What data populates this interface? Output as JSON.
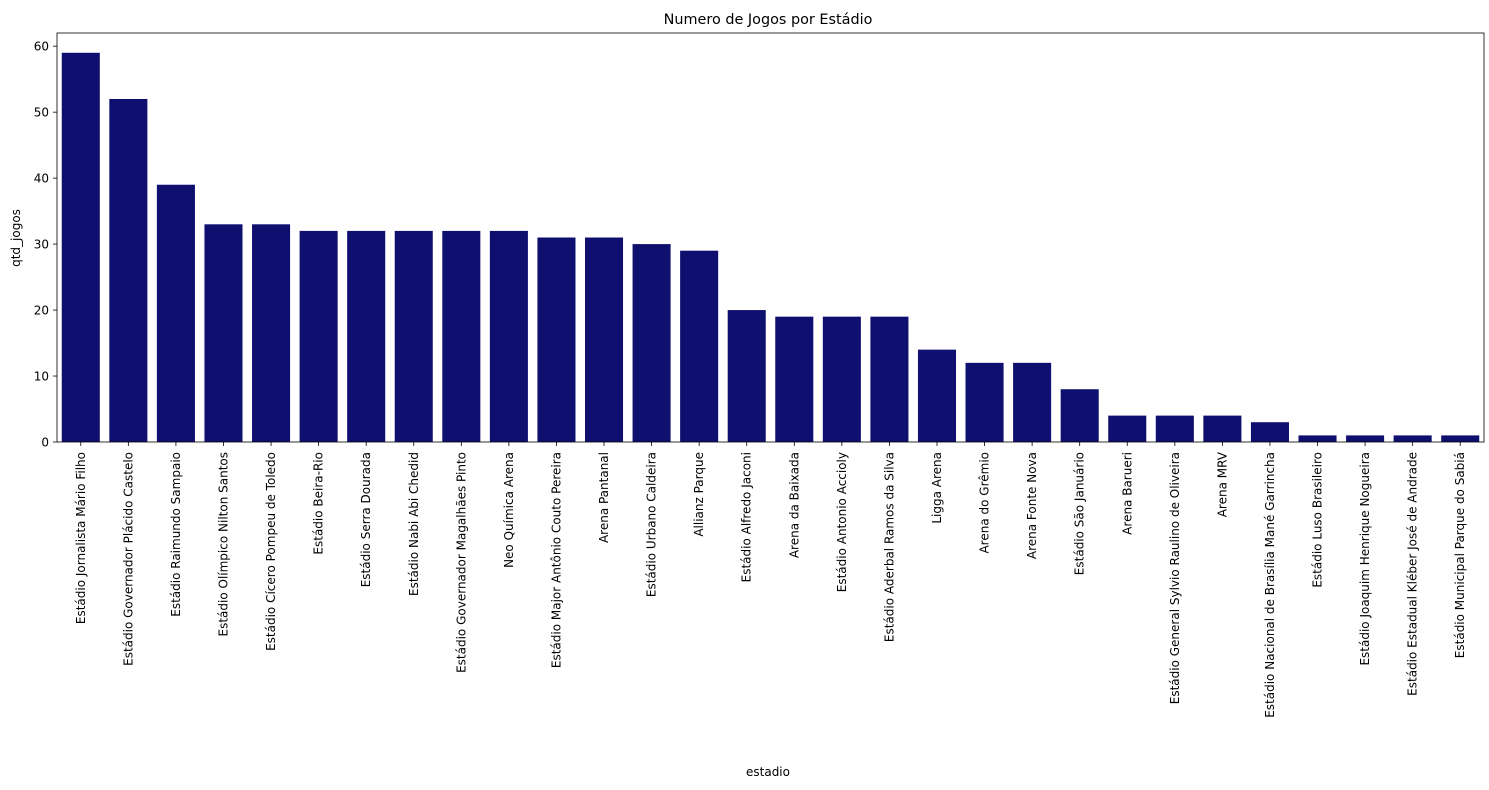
{
  "chart_data": {
    "type": "bar",
    "title": "Numero de Jogos por Estádio",
    "xlabel": "estadio",
    "ylabel": "qtd_jogos",
    "ylim": [
      0,
      62
    ],
    "yticks": [
      0,
      10,
      20,
      30,
      40,
      50,
      60
    ],
    "grid": false,
    "bar_color": "#0f0f70",
    "categories": [
      "Estádio Jornalista Mário Filho",
      "Estádio Governador Plácido Castelo",
      "Estádio Raimundo Sampaio",
      "Estádio Olímpico Nilton Santos",
      "Estádio Cícero Pompeu de Toledo",
      "Estádio Beira-Rio",
      "Estádio Serra Dourada",
      "Estádio Nabi Abi Chedid",
      "Estádio Governador Magalhães Pinto",
      "Neo Química Arena",
      "Estádio Major Antônio Couto Pereira",
      "Arena Pantanal",
      "Estádio Urbano Caldeira",
      "Allianz Parque",
      "Estádio Alfredo Jaconi",
      "Arena da Baixada",
      "Estádio Antonio Accioly",
      "Estádio Aderbal Ramos da Silva",
      "Ligga Arena",
      "Arena do Grêmio",
      "Arena Fonte Nova",
      "Estádio São Januário",
      "Arena Barueri",
      "Estádio General Sylvio Raulino de Oliveira",
      "Arena MRV",
      "Estádio Nacional de Brasília Mané Garrincha",
      "Estádio Luso Brasileiro",
      "Estádio Joaquim Henrique Nogueira",
      "Estádio Estadual Kléber José de Andrade",
      "Estádio Municipal Parque do Sabiá"
    ],
    "values": [
      59,
      52,
      39,
      33,
      33,
      32,
      32,
      32,
      32,
      32,
      31,
      31,
      30,
      29,
      20,
      19,
      19,
      19,
      14,
      12,
      12,
      8,
      4,
      4,
      4,
      3,
      1,
      1,
      1,
      1
    ]
  }
}
